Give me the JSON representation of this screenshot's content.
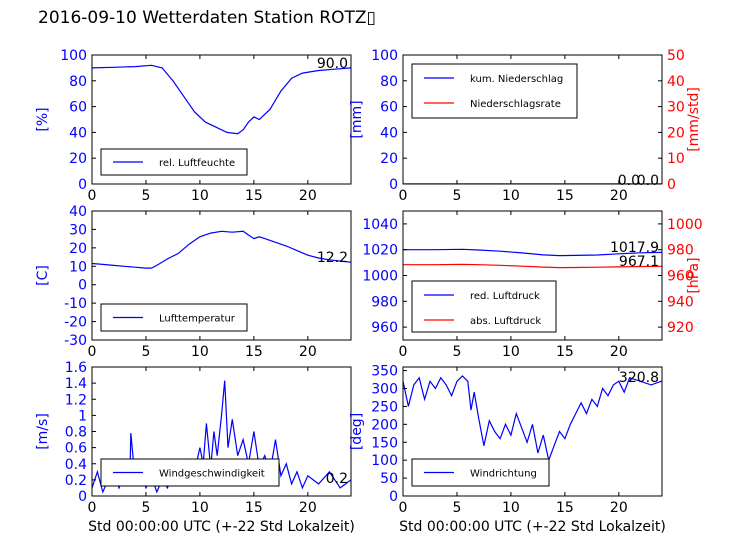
{
  "title": "2016-09-10 Wetterdaten Station ROTZ▯",
  "colors": {
    "primary": "#0000ff",
    "secondary": "#ff0000",
    "frame": "#000000"
  },
  "chart_data": [
    {
      "type": "line",
      "panel": "top-left",
      "xlabel": "",
      "ylabel": "[%]",
      "xlim": [
        0,
        24
      ],
      "ylim": [
        0,
        100
      ],
      "xticks": [
        0,
        5,
        10,
        15,
        20
      ],
      "yticks": [
        0,
        20,
        40,
        60,
        80,
        100
      ],
      "legend_position": "lower-left",
      "annotations": [
        "90.0"
      ],
      "series": [
        {
          "name": "rel. Luftfeuchte",
          "color": "#0000ff",
          "x": [
            0,
            2,
            4,
            5.5,
            6.5,
            7.5,
            8.5,
            9.5,
            10.5,
            11.5,
            12.5,
            13.5,
            14,
            14.5,
            15,
            15.5,
            16.5,
            17.5,
            18.5,
            19.5,
            21,
            22.5,
            24
          ],
          "y": [
            90,
            90.5,
            91,
            92,
            90,
            80,
            68,
            56,
            48,
            44,
            40,
            39,
            42,
            48,
            52,
            50,
            58,
            72,
            82,
            86,
            88,
            89,
            90
          ]
        }
      ]
    },
    {
      "type": "line",
      "panel": "top-right",
      "xlabel": "",
      "ylabel": "[mm]",
      "ylabel_right": "[mm/std]",
      "xlim": [
        0,
        24
      ],
      "ylim": [
        0,
        100
      ],
      "ylim_right": [
        0,
        50
      ],
      "xticks": [
        0,
        5,
        10,
        15,
        20
      ],
      "yticks": [
        0,
        20,
        40,
        60,
        80,
        100
      ],
      "yticks_right": [
        0,
        10,
        20,
        30,
        40,
        50
      ],
      "legend_position": "upper-left",
      "annotations": [
        "0.0",
        "0.0"
      ],
      "series": [
        {
          "name": "kum. Niederschlag",
          "color": "#0000ff",
          "x": [
            0,
            24
          ],
          "y": [
            0,
            0
          ]
        },
        {
          "name": "Niederschlagsrate",
          "color": "#ff0000",
          "x": [
            0,
            24
          ],
          "y": [
            0,
            0
          ]
        }
      ]
    },
    {
      "type": "line",
      "panel": "middle-left",
      "xlabel": "",
      "ylabel": "[C]",
      "xlim": [
        0,
        24
      ],
      "ylim": [
        -30,
        40
      ],
      "xticks": [
        0,
        5,
        10,
        15,
        20
      ],
      "yticks": [
        -30,
        -20,
        -10,
        0,
        10,
        20,
        30,
        40
      ],
      "legend_position": "lower-left",
      "annotations": [
        "12.2"
      ],
      "series": [
        {
          "name": "Lufttemperatur",
          "color": "#0000ff",
          "x": [
            0,
            1,
            2,
            3,
            4,
            5,
            5.5,
            6,
            7,
            8,
            9,
            10,
            11,
            12,
            13,
            14,
            14.5,
            15,
            15.5,
            16,
            17,
            18,
            19,
            20,
            21,
            22,
            23,
            24
          ],
          "y": [
            11.5,
            11,
            10.5,
            10,
            9.5,
            9,
            9,
            10.5,
            14,
            17,
            22,
            26,
            28,
            29,
            28.5,
            29,
            27,
            25,
            26,
            25,
            23,
            21,
            18.5,
            16,
            14.5,
            13.5,
            12.8,
            12.2
          ]
        }
      ]
    },
    {
      "type": "line",
      "panel": "middle-right",
      "xlabel": "",
      "ylabel": "",
      "ylabel_right": "[hPa]",
      "xlim": [
        0,
        24
      ],
      "ylim": [
        950,
        1050
      ],
      "ylim_right": [
        910,
        1010
      ],
      "xticks": [
        0,
        5,
        10,
        15,
        20
      ],
      "yticks": [
        960,
        980,
        1000,
        1020,
        1040
      ],
      "yticks_right": [
        920,
        940,
        960,
        980,
        1000
      ],
      "legend_position": "lower-left",
      "annotations": [
        "1017.9",
        "967.1"
      ],
      "series": [
        {
          "name": "red. Luftdruck",
          "color": "#0000ff",
          "x": [
            0,
            3,
            5.5,
            7,
            9,
            11,
            13,
            14.5,
            16,
            18,
            20,
            22,
            24
          ],
          "y": [
            1020,
            1020,
            1020.3,
            1019.8,
            1018.8,
            1017.5,
            1016,
            1015.4,
            1015.6,
            1015.9,
            1016.8,
            1017.6,
            1017.9
          ]
        },
        {
          "name": "abs. Luftdruck",
          "color": "#ff0000",
          "x": [
            0,
            3,
            5.5,
            7,
            9,
            11,
            13,
            14.5,
            16,
            18,
            20,
            22,
            24
          ],
          "y": [
            968.4,
            968.4,
            968.6,
            968.4,
            967.9,
            967.2,
            966.5,
            966.1,
            966.2,
            966.4,
            966.7,
            967.0,
            967.1
          ]
        }
      ]
    },
    {
      "type": "line",
      "panel": "bottom-left",
      "xlabel": "Std 00:00:00 UTC (+-22 Std Lokalzeit)",
      "ylabel": "[m/s]",
      "xlim": [
        0,
        24
      ],
      "ylim": [
        0,
        1.6
      ],
      "xticks": [
        0,
        5,
        10,
        15,
        20
      ],
      "yticks": [
        0,
        0.2,
        0.4,
        0.6,
        0.8,
        1.0,
        1.2,
        1.4,
        1.6
      ],
      "legend_position": "lower-left",
      "annotations": [
        "0.2"
      ],
      "series": [
        {
          "name": "Windgeschwindigkeit",
          "color": "#0000ff",
          "x": [
            0,
            0.5,
            1,
            1.5,
            2,
            2.5,
            3,
            3.5,
            3.6,
            4,
            4.5,
            5,
            5.5,
            6,
            6.5,
            7,
            7.5,
            8,
            8.5,
            9,
            9.5,
            10,
            10.3,
            10.6,
            11,
            11.3,
            11.6,
            12,
            12.3,
            12.6,
            13,
            13.5,
            14,
            14.5,
            15,
            15.5,
            16,
            16.5,
            17,
            17.5,
            18,
            18.5,
            19,
            19.5,
            20,
            21,
            22,
            23,
            24
          ],
          "y": [
            0.1,
            0.3,
            0.05,
            0.2,
            0.35,
            0.1,
            0.25,
            0.15,
            0.78,
            0.2,
            0.3,
            0.1,
            0.25,
            0.05,
            0.2,
            0.1,
            0.3,
            0.15,
            0.2,
            0.45,
            0.3,
            0.6,
            0.4,
            0.9,
            0.35,
            0.8,
            0.5,
            1.0,
            1.43,
            0.6,
            0.95,
            0.5,
            0.7,
            0.4,
            0.8,
            0.35,
            0.5,
            0.3,
            0.7,
            0.25,
            0.4,
            0.15,
            0.3,
            0.1,
            0.25,
            0.15,
            0.3,
            0.1,
            0.2
          ]
        }
      ]
    },
    {
      "type": "line",
      "panel": "bottom-right",
      "xlabel": "Std 00:00:00 UTC (+-22 Std Lokalzeit)",
      "ylabel": "[deg]",
      "xlim": [
        0,
        24
      ],
      "ylim": [
        0,
        360
      ],
      "xticks": [
        0,
        5,
        10,
        15,
        20
      ],
      "yticks": [
        0,
        50,
        100,
        150,
        200,
        250,
        300,
        350
      ],
      "legend_position": "lower-left",
      "annotations": [
        "320.8"
      ],
      "series": [
        {
          "name": "Windrichtung",
          "color": "#0000ff",
          "x": [
            0,
            0.5,
            1,
            1.5,
            2,
            2.5,
            3,
            3.5,
            4,
            4.5,
            5,
            5.5,
            6,
            6.3,
            6.6,
            7,
            7.5,
            8,
            8.5,
            9,
            9.5,
            10,
            10.5,
            11,
            11.5,
            12,
            12.5,
            13,
            13.5,
            14,
            14.5,
            15,
            15.5,
            16,
            16.5,
            17,
            17.5,
            18,
            18.5,
            19,
            19.5,
            20,
            20.5,
            21,
            22,
            23,
            24
          ],
          "y": [
            320,
            250,
            310,
            330,
            270,
            320,
            300,
            330,
            310,
            280,
            320,
            335,
            320,
            240,
            290,
            220,
            140,
            210,
            180,
            160,
            200,
            170,
            230,
            190,
            150,
            200,
            120,
            170,
            100,
            140,
            180,
            160,
            200,
            230,
            260,
            230,
            270,
            250,
            300,
            280,
            310,
            320,
            290,
            330,
            320,
            310,
            321
          ]
        }
      ]
    }
  ]
}
